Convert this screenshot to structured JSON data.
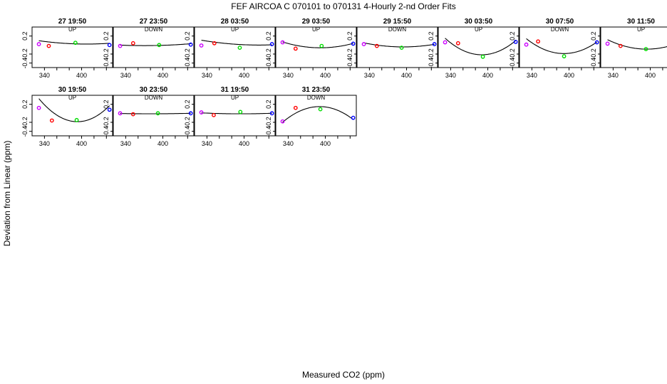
{
  "title": "FEF   AIRCOA C   070101 to 070131   4-Hourly 2-nd Order Fits",
  "colors": {
    "axis": "#000000",
    "curve": "#000000",
    "purple": "#cc00ff",
    "red": "#ff0000",
    "green": "#00dd00",
    "blue": "#0000ff"
  },
  "chart_data": {
    "type": "scatter",
    "title": "FEF   AIRCOA C   070101 to 070131   4-Hourly 2-nd Order Fits",
    "xlabel": "Measured CO2 (ppm)",
    "ylabel": "Deviation from Linear (ppm)",
    "xlim": [
      320,
      450
    ],
    "ylim": [
      -0.5,
      0.4
    ],
    "xticks": [
      340,
      400
    ],
    "yticks": [
      0.2,
      -0.2,
      -0.4
    ],
    "panels": [
      {
        "label": "27 19:50",
        "direction": "UP",
        "points": [
          [
            331,
            0.02
          ],
          [
            347,
            -0.02
          ],
          [
            390,
            0.05
          ],
          [
            445,
            0.0
          ]
        ],
        "fit": [
          0.026,
          -0.00045,
          1.25e-05
        ]
      },
      {
        "label": "27 23:50",
        "direction": "DOWN",
        "points": [
          [
            331,
            -0.02
          ],
          [
            352,
            0.04
          ],
          [
            394,
            0.0
          ],
          [
            445,
            0.01
          ]
        ],
        "fit": [
          -0.01,
          0.0003,
          7.5e-06
        ]
      },
      {
        "label": "28 03:50",
        "direction": "UP",
        "points": [
          [
            331,
            -0.01
          ],
          [
            352,
            0.04
          ],
          [
            393,
            -0.06
          ],
          [
            445,
            0.02
          ]
        ],
        "fit": [
          0.014,
          -0.00085,
          1.25e-05
        ]
      },
      {
        "label": "29 03:50",
        "direction": "UP",
        "points": [
          [
            331,
            0.06
          ],
          [
            352,
            -0.08
          ],
          [
            394,
            -0.02
          ],
          [
            445,
            0.03
          ]
        ],
        "fit": [
          -0.061,
          -0.00015,
          3.5e-05
        ]
      },
      {
        "label": "29 15:50",
        "direction": "DOWN",
        "points": [
          [
            331,
            0.02
          ],
          [
            352,
            -0.02
          ],
          [
            392,
            -0.06
          ],
          [
            445,
            0.02
          ]
        ],
        "fit": [
          -0.041,
          -0.0002,
          2.25e-05
        ]
      },
      {
        "label": "30 03:50",
        "direction": "UP",
        "points": [
          [
            331,
            0.06
          ],
          [
            352,
            0.04
          ],
          [
            392,
            -0.26
          ],
          [
            445,
            0.07
          ]
        ],
        "fit": [
          -0.216,
          -5e-05,
          0.000105
        ]
      },
      {
        "label": "30 07:50",
        "direction": "DOWN",
        "points": [
          [
            331,
            0.01
          ],
          [
            350,
            0.08
          ],
          [
            392,
            -0.25
          ],
          [
            445,
            0.06
          ]
        ],
        "fit": [
          -0.189,
          -0.0003,
          9e-05
        ]
      },
      {
        "label": "30 11:50",
        "direction": "UP",
        "points": [
          [
            331,
            0.03
          ],
          [
            352,
            -0.02
          ],
          [
            393,
            -0.09
          ],
          [
            445,
            0.03
          ]
        ],
        "fit": [
          -0.09,
          -0.00045,
          5.25e-05
        ]
      },
      {
        "label": "30 19:50",
        "direction": "UP",
        "points": [
          [
            331,
            0.12
          ],
          [
            352,
            -0.16
          ],
          [
            392,
            -0.15
          ],
          [
            445,
            0.08
          ]
        ],
        "fit": [
          -0.185,
          -0.00085,
          0.0001325
        ]
      },
      {
        "label": "30 23:50",
        "direction": "DOWN",
        "points": [
          [
            331,
            0.0
          ],
          [
            352,
            -0.02
          ],
          [
            392,
            0.0
          ],
          [
            445,
            0.0
          ]
        ],
        "fit": [
          -0.01,
          5e-05,
          2.5e-06
        ]
      },
      {
        "label": "31 19:50",
        "direction": "UP",
        "points": [
          [
            331,
            0.02
          ],
          [
            351,
            -0.04
          ],
          [
            394,
            0.03
          ],
          [
            445,
            0.0
          ]
        ],
        "fit": [
          -0.011,
          -5e-05,
          5e-06
        ]
      },
      {
        "label": "31 23:50",
        "direction": "DOWN",
        "points": [
          [
            331,
            -0.18
          ],
          [
            352,
            0.12
          ],
          [
            392,
            0.09
          ],
          [
            445,
            -0.1
          ]
        ],
        "fit": [
          0.149,
          0.00015,
          -9.75e-05
        ]
      }
    ]
  }
}
